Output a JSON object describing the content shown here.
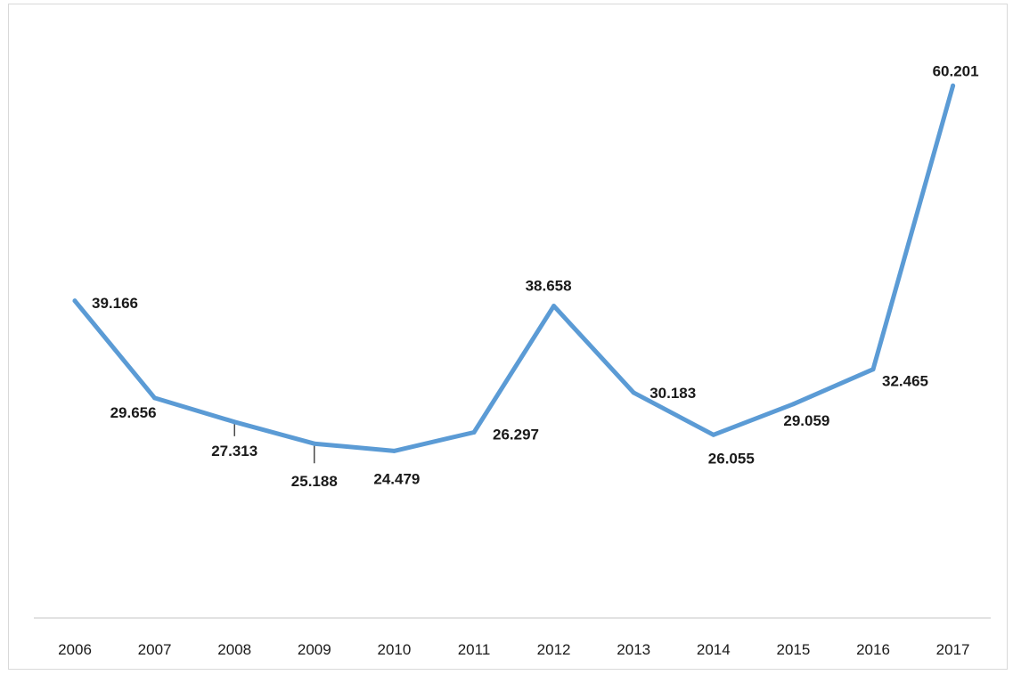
{
  "chart_data": {
    "type": "line",
    "categories": [
      "2006",
      "2007",
      "2008",
      "2009",
      "2010",
      "2011",
      "2012",
      "2013",
      "2014",
      "2015",
      "2016",
      "2017"
    ],
    "values": [
      39.166,
      29.656,
      27.313,
      25.188,
      24.479,
      26.297,
      38.658,
      30.183,
      26.055,
      29.059,
      32.465,
      60.201
    ],
    "data_labels": [
      "39.166",
      "29.656",
      "27.313",
      "25.188",
      "24.479",
      "26.297",
      "38.658",
      "30.183",
      "26.055",
      "29.059",
      "32.465",
      "60.201"
    ],
    "title": "",
    "xlabel": "",
    "ylabel": "",
    "grid": false,
    "legend": "none",
    "line_color": "#5b9bd5",
    "axis_color": "#d9d9d9",
    "text_color": "#1a1a1a"
  }
}
